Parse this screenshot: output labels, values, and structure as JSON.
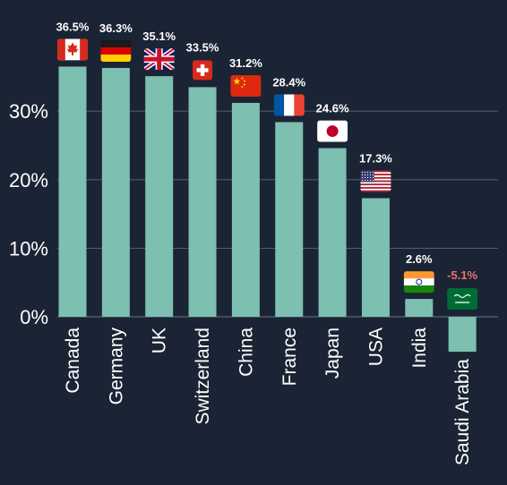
{
  "chart_data": {
    "type": "bar",
    "categories": [
      "Canada",
      "Germany",
      "UK",
      "Switzerland",
      "China",
      "France",
      "Japan",
      "USA",
      "India",
      "Saudi Arabia"
    ],
    "values": [
      36.5,
      36.3,
      35.1,
      33.5,
      31.2,
      28.4,
      24.6,
      17.3,
      2.6,
      -5.1
    ],
    "value_labels": [
      "36.5%",
      "36.3%",
      "35.1%",
      "33.5%",
      "31.2%",
      "28.4%",
      "24.6%",
      "17.3%",
      "2.6%",
      "-5.1%"
    ],
    "flags": [
      "flag-canada-icon",
      "flag-germany-icon",
      "flag-uk-icon",
      "flag-switzerland-icon",
      "flag-china-icon",
      "flag-france-icon",
      "flag-japan-icon",
      "flag-usa-icon",
      "flag-india-icon",
      "flag-saudi-arabia-icon"
    ],
    "y_ticks": [
      {
        "value": 0,
        "label": "0%"
      },
      {
        "value": 10,
        "label": "10%"
      },
      {
        "value": 20,
        "label": "20%"
      },
      {
        "value": 30,
        "label": "30%"
      }
    ],
    "ylim": [
      -5.1,
      36.5
    ],
    "grid": true,
    "title": "",
    "xlabel": "",
    "ylabel": "",
    "colors": {
      "background": "#1b2434",
      "bar": "#7dbfb0",
      "text": "#ffffff",
      "negative_label": "#e8736a",
      "grid": "#6b7585"
    }
  }
}
